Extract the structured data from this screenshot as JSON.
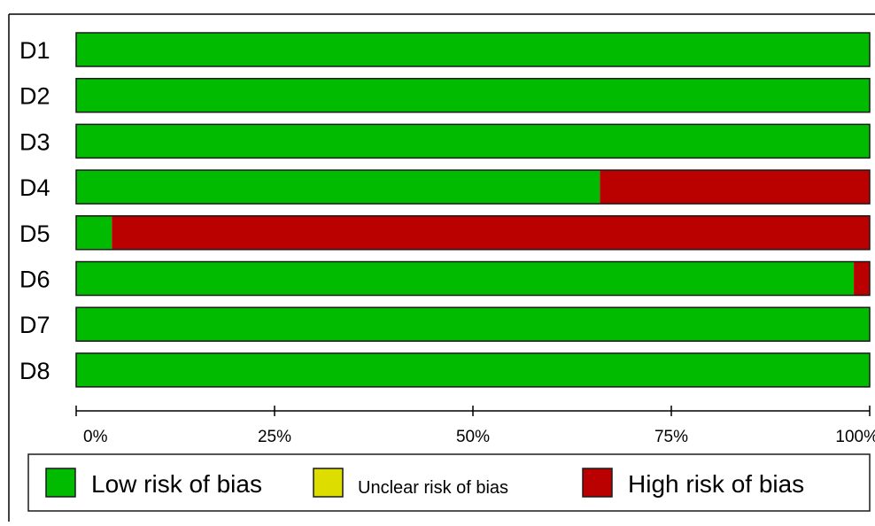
{
  "chart_data": {
    "type": "bar",
    "orientation": "horizontal",
    "stacked": true,
    "percent_scale": true,
    "categories": [
      "D1",
      "D2",
      "D3",
      "D4",
      "D5",
      "D6",
      "D7",
      "D8"
    ],
    "series": [
      {
        "name": "Low risk of bias",
        "color": "#00bb00",
        "values": [
          100,
          100,
          100,
          66,
          4.5,
          98,
          100,
          100
        ]
      },
      {
        "name": "Unclear risk of bias",
        "color": "#dddd00",
        "values": [
          0,
          0,
          0,
          0,
          0,
          0,
          0,
          0
        ]
      },
      {
        "name": "High risk of bias",
        "color": "#bb0000",
        "values": [
          0,
          0,
          0,
          34,
          95.5,
          2,
          0,
          0
        ]
      }
    ],
    "xlim": [
      0,
      100
    ],
    "xticks": [
      "0%",
      "25%",
      "50%",
      "75%",
      "100%"
    ],
    "title": "",
    "xlabel": "",
    "ylabel": "",
    "grid": false,
    "legend_position": "bottom"
  }
}
